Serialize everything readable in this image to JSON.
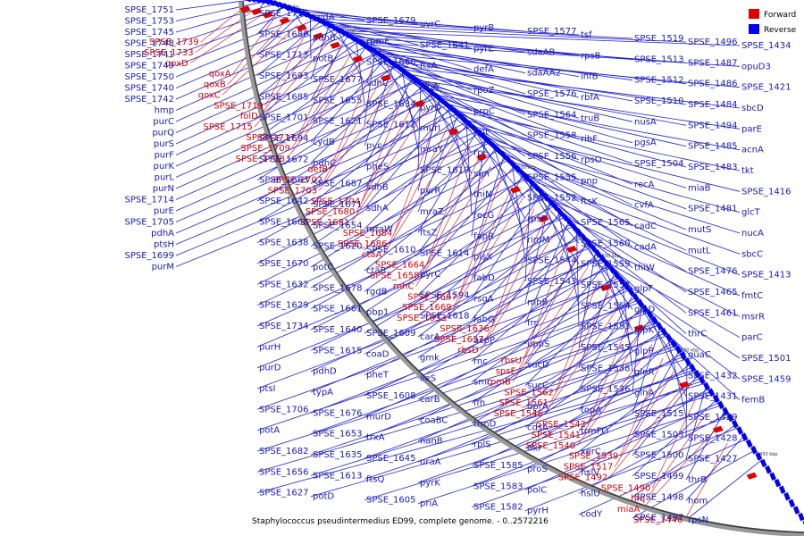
{
  "caption": "Staphylococcus pseudintermedius ED99, complete genome. - 0..2572216",
  "legend": [
    {
      "label": "Forward",
      "color": "#e00000"
    },
    {
      "label": "Reverse",
      "color": "#0000ee"
    }
  ],
  "colors": {
    "forward": "#e00000",
    "reverse": "#0000ee",
    "forward_line": "#e04040",
    "reverse_line": "#2020d0"
  },
  "ring_ticks": [
    "1750 kbp",
    "1700 kbp",
    "1650 kbp",
    "1600 kbp",
    "1550 kbp",
    "1500 kbp",
    "1450 kbp"
  ],
  "labels_forward": [
    "SPSE_1739",
    "SPSE_1733",
    "qoxD",
    "qoxA",
    "qoxB",
    "qoxC",
    "SPSE_1719",
    "folD",
    "SPSE_1715",
    "SPSE_1717",
    "SPSE_1709",
    "SPSE_1718",
    "defB",
    "SPSE_1702",
    "SPSE_1703",
    "SPSE_1704",
    "SPSE_1680",
    "SPSE_1681",
    "SPSE_1684",
    "SPSE_1686",
    "ctaA",
    "SPSE_1664",
    "SPSE_1658",
    "rnhC",
    "SPSE_1667",
    "SPSE_1669",
    "SPSE_1633",
    "SPSE_1636",
    "SPSE_1637",
    "rbsD",
    "rbsU",
    "spsE",
    "rpmB",
    "SPSE_1562",
    "SPSE_1561",
    "SPSE_1546",
    "SPSE_1542",
    "SPSE_1541",
    "SPSE_1540",
    "SPSE_1539",
    "SPSE_1517",
    "SPSE_1492",
    "SPSE_1490",
    "hfq",
    "miaA",
    "SPSE_1446"
  ],
  "labels_reverse": [
    "SPSE_1751",
    "SPSE_1753",
    "SPSE_1745",
    "SPSE_1748",
    "SPSE_1741",
    "SPSE_1749",
    "SPSE_1750",
    "SPSE_1740",
    "SPSE_1742",
    "hmp",
    "purC",
    "purQ",
    "purS",
    "purF",
    "purK",
    "purL",
    "purN",
    "SPSE_1714",
    "purE",
    "SPSE_1705",
    "pdhA",
    "ptsH",
    "SPSE_1699",
    "purM",
    "SPSE_1712",
    "SPSE_1688",
    "SPSE_1713",
    "SPSE_1693",
    "SPSE_1685",
    "SPSE_1701",
    "SPSE_1694",
    "SPSE_1672",
    "SPSE_1663",
    "SPSE_1642",
    "SPSE_1668",
    "SPSE_1638",
    "SPSE_1670",
    "SPSE_1632",
    "SPSE_1629",
    "SPSE_1734",
    "purH",
    "purD",
    "ptsI",
    "SPSE_1706",
    "potA",
    "SPSE_1682",
    "SPSE_1656",
    "SPSE_1627",
    "cydA",
    "pdhB",
    "potB",
    "SPSE_1677",
    "SPSE_1655",
    "SPSE_1621",
    "cydB",
    "pdhC",
    "SPSE_1687",
    "SPSE_1671",
    "SPSE_1654",
    "SPSE_1620",
    "potC",
    "SPSE_1678",
    "SPSE_1661",
    "SPSE_1640",
    "SPSE_1615",
    "pdhD",
    "typA",
    "SPSE_1676",
    "SPSE_1653",
    "SPSE_1635",
    "SPSE_1613",
    "potD",
    "SPSE_1679",
    "rpmF",
    "SPSE_1666",
    "sdhC",
    "SPSE_1634",
    "SPSE_1612",
    "pyc",
    "pheS",
    "sdhB",
    "sdhA",
    "mraW",
    "SPSE_1610",
    "ctaB",
    "rgdB",
    "pbp1",
    "SPSE_1609",
    "coaD",
    "pheT",
    "SPSE_1608",
    "murD",
    "trxA",
    "SPSE_1645",
    "ftsQ",
    "SPSE_1605",
    "uvrC",
    "SPSE_1641",
    "ftsA",
    "lspA",
    "pyrD",
    "murI",
    "mraY",
    "SPSE_1619",
    "pyrR",
    "mraZ",
    "ftsZ",
    "SPSE_1614",
    "pyrC",
    "SPSE_1594",
    "SPSE_1618",
    "carA",
    "gmk",
    "ileS",
    "carB",
    "coaBC",
    "nanB",
    "uraA",
    "pyrK",
    "priA",
    "pyrB",
    "pyrE",
    "defA",
    "rpoZ",
    "prpC",
    "fmt",
    "rpe",
    "sun",
    "thiN",
    "recG",
    "fapR",
    "plsX",
    "fabD",
    "rsgA",
    "fabG",
    "acpP",
    "rnc",
    "smc",
    "ffh",
    "trmD",
    "rplS",
    "SPSE_1585",
    "SPSE_1583",
    "SPSE_1582",
    "SPSE_1577",
    "sdaAB",
    "sdaAA2",
    "SPSE_1576",
    "SPSE_1564",
    "SPSE_1558",
    "SPSE_1556",
    "SPSE_1555",
    "SPSE_1552",
    "rpsP",
    "rimM",
    "SPSE_1544",
    "SPSE_1543",
    "rnhB",
    "frr",
    "uppS",
    "sucD",
    "sucC",
    "dprA",
    "cdsA",
    "dxr",
    "proS",
    "polC",
    "pyrH",
    "tsf",
    "rpsB",
    "infB",
    "rbfA",
    "truB",
    "ribF",
    "rpsO",
    "pnp",
    "ftsK",
    "SPSE_1565",
    "SPSE_1560",
    "SPSE_1559",
    "SPSE_1557",
    "SPSE_1554",
    "SPSE_1553",
    "SPSE_1545",
    "SPSE_1538",
    "SPSE_1536",
    "topA",
    "trmFO",
    "xerC",
    "hslV",
    "hslU",
    "codY",
    "SPSE_1519",
    "SPSE_1513",
    "SPSE_1512",
    "SPSE_1510",
    "nusA",
    "pgsA",
    "SPSE_1504",
    "recA",
    "cvfA",
    "cadC",
    "cadA",
    "thiW",
    "glpF",
    "glpD",
    "glpK",
    "glpP",
    "glnR",
    "glnA",
    "SPSE_1515",
    "SPSE_1503",
    "SPSE_1500",
    "SPSE_1499",
    "SPSE_1498",
    "SPSE_1497",
    "SPSE_1496",
    "SPSE_1487",
    "SPSE_1486",
    "SPSE_1484",
    "SPSE_1494",
    "SPSE_1485",
    "SPSE_1483",
    "miaB",
    "SPSE_1481",
    "mutS",
    "mutL",
    "SPSE_1476",
    "SPSE_1465",
    "SPSE_1461",
    "thrC",
    "guaC",
    "SPSE_1432",
    "SPSE_1431",
    "SPSE_1429",
    "SPSE_1428",
    "SPSE_1427",
    "thrB",
    "hom",
    "rpsN",
    "SPSE_1434",
    "opuD3",
    "SPSE_1421",
    "sbcD",
    "parE",
    "acnA",
    "tkt",
    "SPSE_1416",
    "glcT",
    "nucA",
    "sbcC",
    "SPSE_1413",
    "fmtC",
    "msrR",
    "parC",
    "SPSE_1501",
    "SPSE_1459",
    "femB"
  ]
}
